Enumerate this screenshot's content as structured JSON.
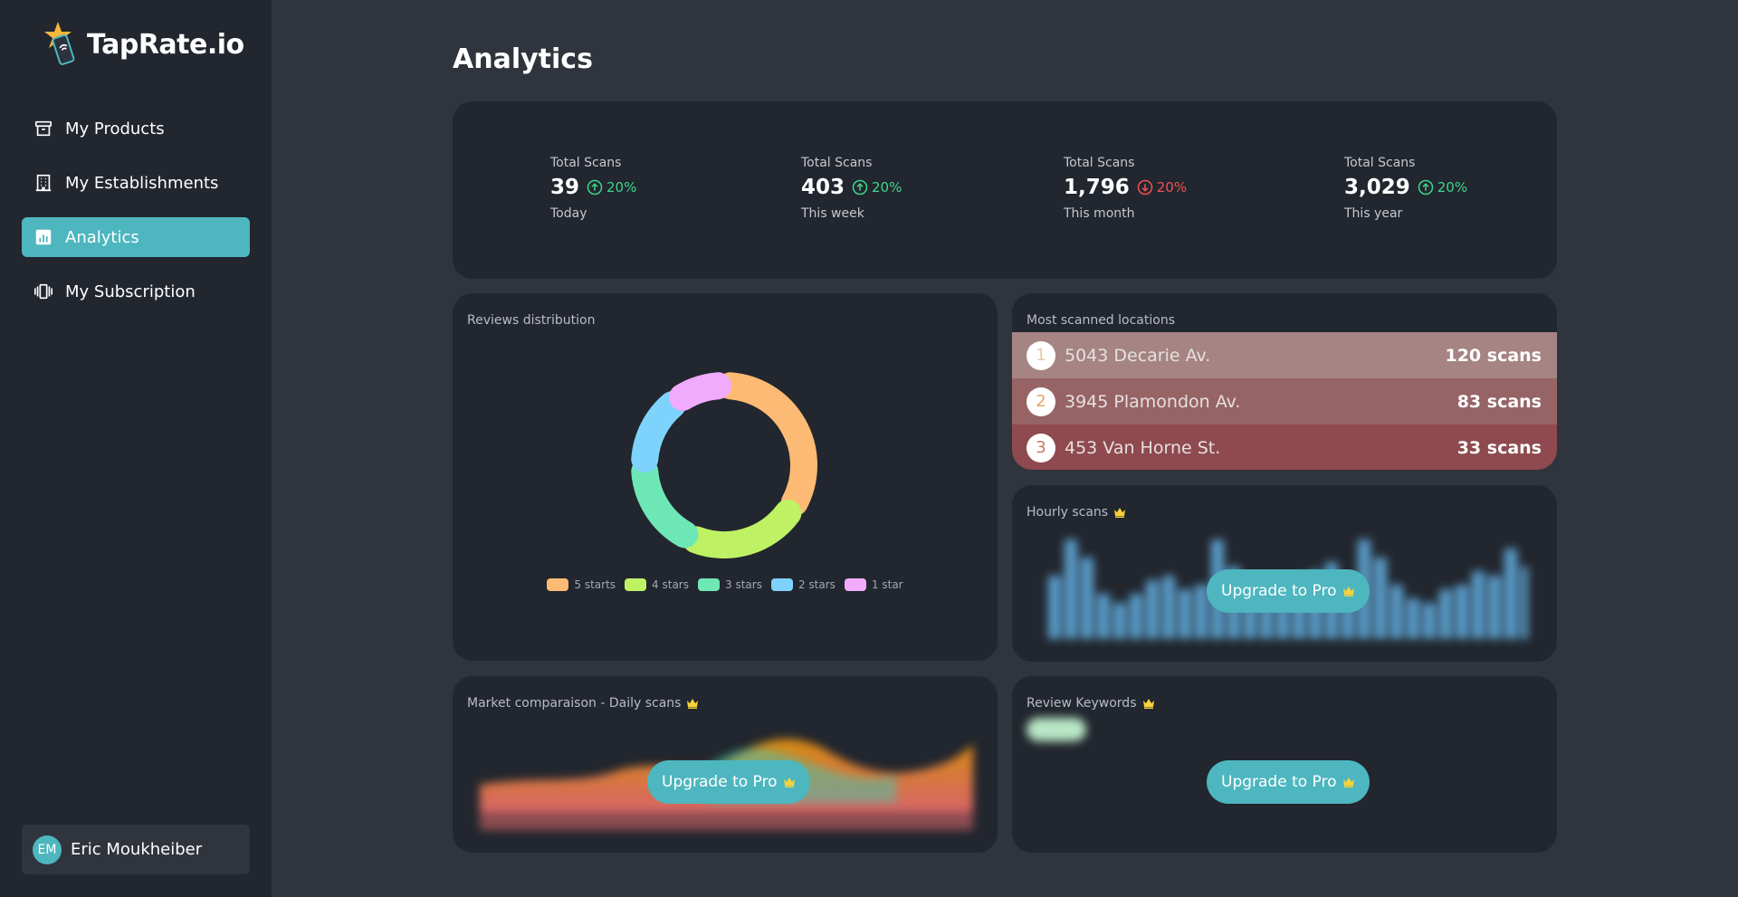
{
  "app": {
    "name": "TapRate.io"
  },
  "sidebar": {
    "items": [
      {
        "label": "My Products",
        "icon": "archive-box-icon",
        "active": false
      },
      {
        "label": "My Establishments",
        "icon": "building-icon",
        "active": false
      },
      {
        "label": "Analytics",
        "icon": "bar-chart-icon",
        "active": true
      },
      {
        "label": "My Subscription",
        "icon": "cards-stack-icon",
        "active": false
      }
    ],
    "user": {
      "initials": "EM",
      "name": "Eric Moukheiber"
    }
  },
  "page": {
    "title": "Analytics"
  },
  "stats": [
    {
      "label": "Total Scans",
      "value": "39",
      "trend": "20%",
      "direction": "up",
      "period": "Today"
    },
    {
      "label": "Total Scans",
      "value": "403",
      "trend": "20%",
      "direction": "up",
      "period": "This week"
    },
    {
      "label": "Total Scans",
      "value": "1,796",
      "trend": "20%",
      "direction": "down",
      "period": "This month"
    },
    {
      "label": "Total Scans",
      "value": "3,029",
      "trend": "20%",
      "direction": "up",
      "period": "This year"
    }
  ],
  "reviews": {
    "title": "Reviews distribution",
    "legend": [
      "5 starts",
      "4 stars",
      "3 stars",
      "2 stars",
      "1 star"
    ]
  },
  "locations": {
    "title": "Most scanned locations",
    "rows": [
      {
        "rank": "1",
        "name": "5043 Decarie Av.",
        "count": "120 scans"
      },
      {
        "rank": "2",
        "name": "3945 Plamondon Av.",
        "count": "83 scans"
      },
      {
        "rank": "3",
        "name": "453 Van Horne St.",
        "count": "33 scans"
      }
    ]
  },
  "hourly": {
    "title": "Hourly scans",
    "upgrade_label": "Upgrade to Pro"
  },
  "market": {
    "title": "Market comparaison - Daily scans",
    "upgrade_label": "Upgrade to Pro"
  },
  "keywords": {
    "title": "Review Keywords",
    "upgrade_label": "Upgrade to Pro"
  },
  "colors": {
    "accent": "#4db6bf",
    "up": "#3dd68c",
    "down": "#f05252",
    "crown": "#f6d23c",
    "five_stars": "#fdba74",
    "four_stars": "#bef264",
    "three_stars": "#6ee7b7",
    "two_stars": "#7dd3fc",
    "one_star": "#f0abfc"
  },
  "chart_data": {
    "type": "pie",
    "title": "Reviews distribution",
    "categories": [
      "5 starts",
      "4 stars",
      "3 stars",
      "2 stars",
      "1 star"
    ],
    "values": [
      34,
      23,
      18,
      15,
      10
    ],
    "legend": "bottom"
  }
}
